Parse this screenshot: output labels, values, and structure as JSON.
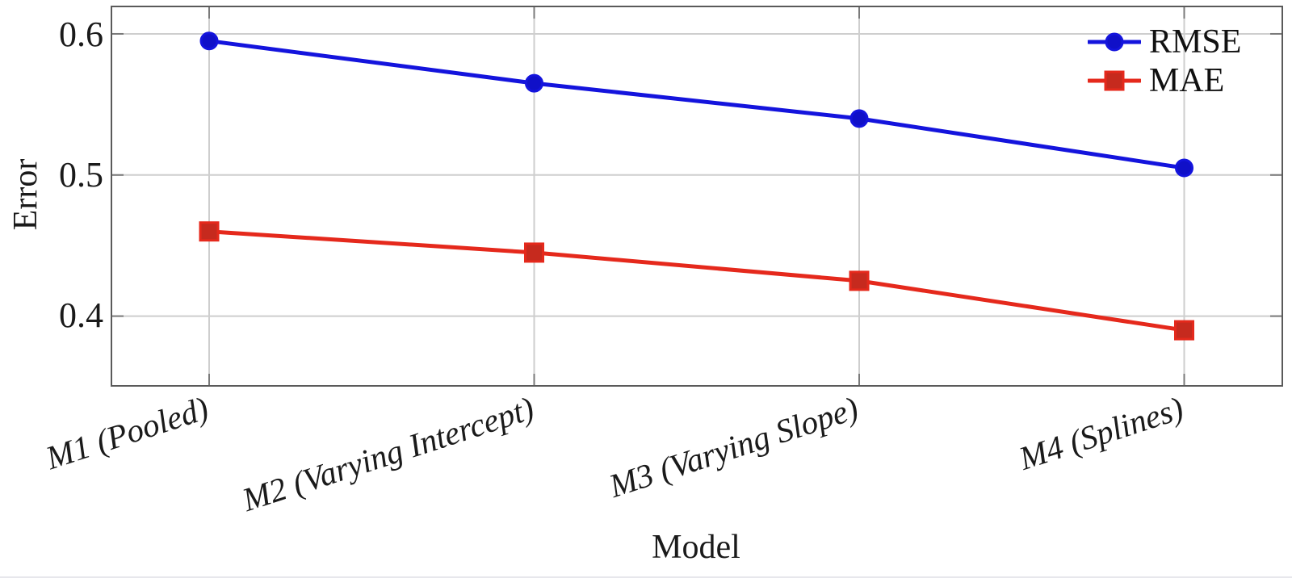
{
  "figure": {
    "y_axis_title": "Error",
    "x_axis_title": "Model",
    "ytick_labels_top_to_bottom": [
      "0.6",
      "0.5",
      "0.4"
    ]
  },
  "chart_data": {
    "type": "line",
    "title": "",
    "xlabel": "Model",
    "ylabel": "Error",
    "categories": [
      "M1 (Pooled)",
      "M2 (Varying Intercept)",
      "M3 (Varying Slope)",
      "M4 (Splines)"
    ],
    "series": [
      {
        "name": "RMSE",
        "values": [
          0.595,
          0.565,
          0.54,
          0.505
        ],
        "color": "#1414dd",
        "marker_fill": "#1010c8",
        "marker": "circle"
      },
      {
        "name": "MAE",
        "values": [
          0.46,
          0.445,
          0.425,
          0.39
        ],
        "color": "#e5291c",
        "marker_fill": "#c62a1e",
        "marker": "square"
      }
    ],
    "ylim": [
      0.35,
      0.62
    ],
    "yticks": [
      0.4,
      0.5,
      0.6
    ],
    "grid": true,
    "legend_position": "top-right",
    "style_colors": {
      "grid": "#cecece",
      "axis_frame": "#5a5a5a",
      "tick": "#7a7a7a",
      "text": "#1a1a1a"
    }
  }
}
